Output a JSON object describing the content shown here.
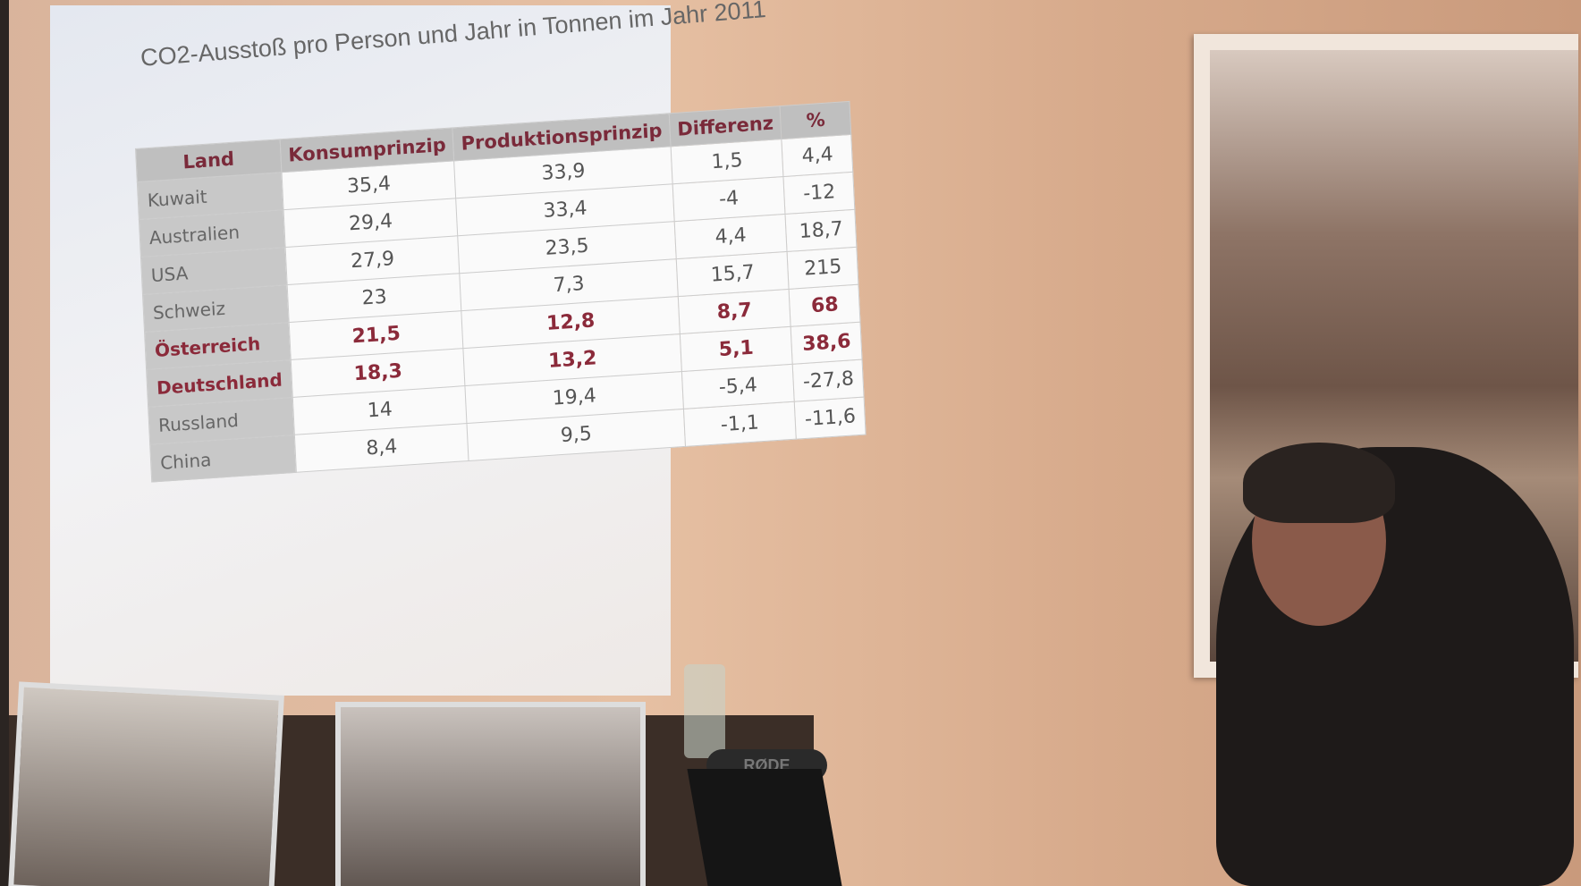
{
  "slide": {
    "title": "CO2-Ausstoß pro Person und Jahr in Tonnen im Jahr 2011",
    "table": {
      "header": [
        "Land",
        "Konsumprinzip",
        "Produktionsprinzip",
        "Differenz",
        "%"
      ],
      "rows": [
        [
          "Kuwait",
          "35,4",
          "33,9",
          "1,5",
          "4,4"
        ],
        [
          "Australien",
          "29,4",
          "33,4",
          "-4",
          "-12"
        ],
        [
          "USA",
          "27,9",
          "23,5",
          "4,4",
          "18,7"
        ],
        [
          "Schweiz",
          "23",
          "7,3",
          "15,7",
          "215"
        ],
        [
          "Österreich",
          "21,5",
          "12,8",
          "8,7",
          "68"
        ],
        [
          "Deutschland",
          "18,3",
          "13,2",
          "5,1",
          "38,6"
        ],
        [
          "Russland",
          "14",
          "19,4",
          "-5,4",
          "-27,8"
        ],
        [
          "China",
          "8,4",
          "9,5",
          "-1,1",
          "-11,6"
        ]
      ]
    }
  },
  "scene": {
    "mic_brand": "RØDE"
  }
}
